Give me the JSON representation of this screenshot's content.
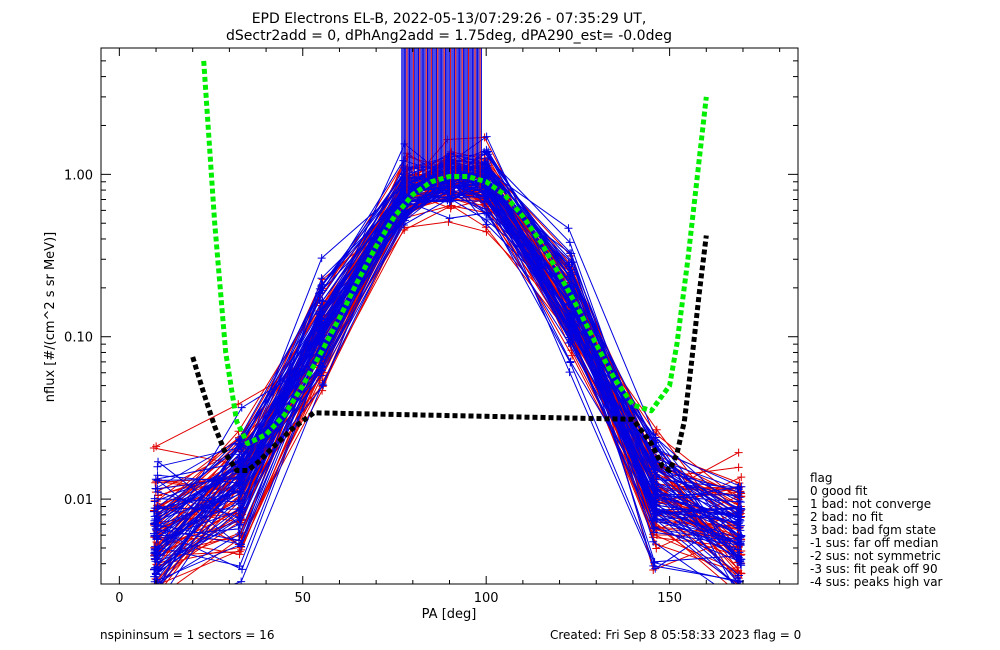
{
  "chart_data": {
    "type": "line",
    "title_line1": "EPD Electrons EL-B, 2022-05-13/07:29:26 - 07:35:29 UT,",
    "title_line2": "dSectr2add = 0, dPhAng2add = 1.75deg, dPA290_est=  -0.0deg",
    "xlabel": "PA [deg]",
    "ylabel": "nflux [#/(cm^2 s sr MeV)]",
    "x_scale": "linear",
    "y_scale": "log",
    "xlim": [
      -5,
      185
    ],
    "ylim": [
      0.003,
      6.0
    ],
    "x_ticks": [
      0,
      50,
      100,
      150
    ],
    "x_tick_labels": [
      "0",
      "50",
      "100",
      "150"
    ],
    "y_ticks": [
      0.01,
      0.1,
      1.0
    ],
    "y_tick_labels": [
      "0.01",
      "0.10",
      "1.00"
    ],
    "grid": false,
    "colors": {
      "red_series": "#e00000",
      "blue_series": "#0000e0",
      "green_fit": "#00ee00",
      "black_fit": "#000000"
    },
    "series_groups": {
      "red_count": 60,
      "blue_count": 70,
      "x_sample_points": [
        10,
        33,
        55,
        78,
        90,
        100,
        123,
        146,
        169
      ],
      "median_curve_y": [
        0.006,
        0.012,
        0.1,
        0.75,
        0.9,
        0.85,
        0.15,
        0.011,
        0.006
      ]
    },
    "fit_curves": {
      "green": {
        "style": "dashed",
        "x": [
          23,
          26,
          29,
          32,
          35,
          40,
          45,
          50,
          55,
          60,
          65,
          70,
          75,
          80,
          85,
          90,
          95,
          100,
          105,
          110,
          115,
          120,
          125,
          130,
          135,
          140,
          145,
          150,
          152,
          155,
          158,
          160
        ],
        "y": [
          5.0,
          0.5,
          0.08,
          0.03,
          0.022,
          0.025,
          0.033,
          0.05,
          0.08,
          0.13,
          0.22,
          0.36,
          0.55,
          0.75,
          0.9,
          0.97,
          0.97,
          0.9,
          0.75,
          0.55,
          0.38,
          0.24,
          0.15,
          0.09,
          0.055,
          0.038,
          0.035,
          0.05,
          0.09,
          0.3,
          1.2,
          3.0
        ]
      },
      "black": {
        "style": "dashed",
        "x": [
          20,
          23,
          26,
          29,
          32,
          35,
          38,
          42,
          47,
          53,
          140,
          145,
          148,
          150,
          152,
          154,
          156,
          158,
          160
        ],
        "y": [
          0.075,
          0.045,
          0.028,
          0.019,
          0.015,
          0.015,
          0.017,
          0.021,
          0.027,
          0.034,
          0.031,
          0.022,
          0.016,
          0.015,
          0.019,
          0.03,
          0.07,
          0.18,
          0.42
        ]
      }
    },
    "saturated_band": {
      "x_min": 77,
      "x_max": 99,
      "y_bottom": 0.85
    },
    "legend": {
      "title": "flag",
      "entries": [
        " 0 good fit",
        " 1 bad: not converge",
        " 2 bad: no fit",
        " 3 bad: bad fgm state",
        "-1 sus: far off median",
        "-2 sus: not symmetric",
        "-3 sus: fit peak off 90",
        "-4 sus: peaks high var"
      ]
    }
  },
  "footer": {
    "left": "nspininsum =  1  sectors = 16",
    "right": "Created: Fri Sep  8 05:58:33 2023   flag = 0"
  }
}
